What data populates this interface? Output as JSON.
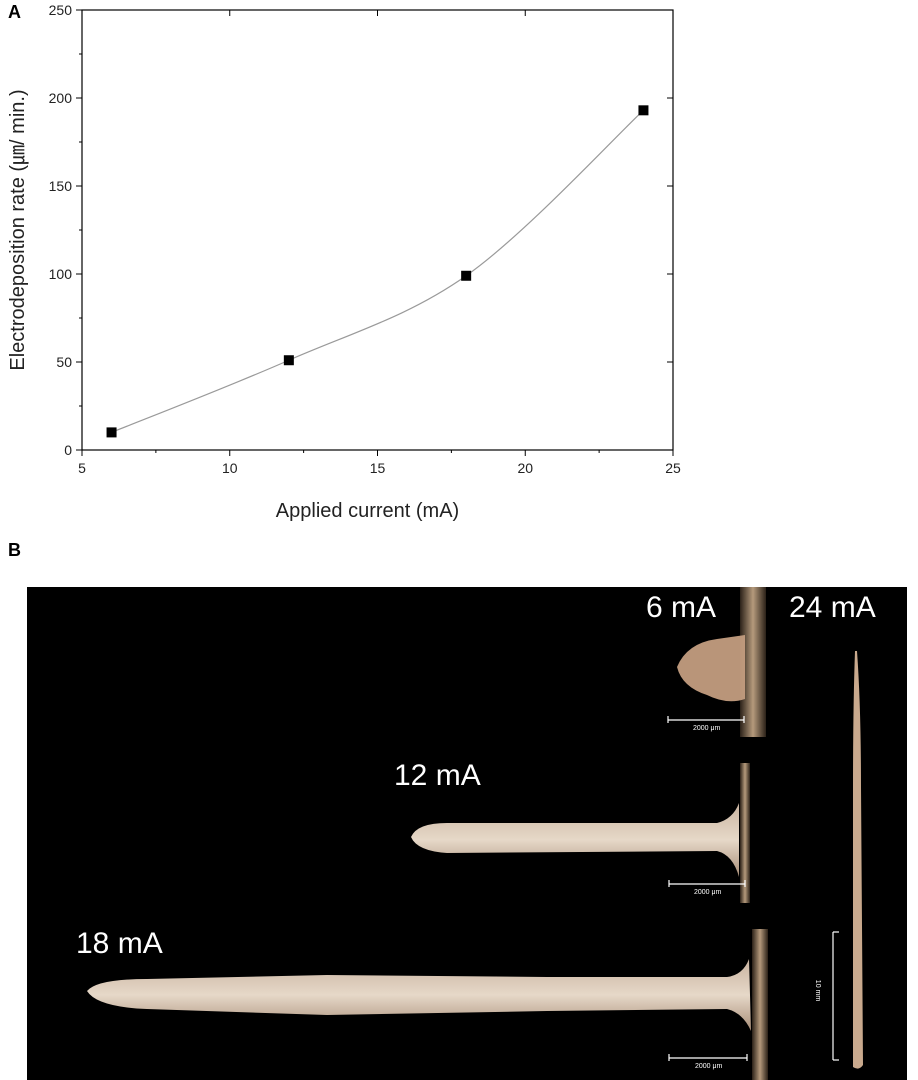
{
  "panel_a_label": "A",
  "panel_b_label": "B",
  "chart_data": {
    "type": "scatter",
    "xlabel": "Applied current (mA)",
    "ylabel": "Electrodeposition rate (㎛/ min.)",
    "xlim": [
      5,
      25
    ],
    "ylim": [
      0,
      250
    ],
    "xticks": [
      5,
      10,
      15,
      20,
      25
    ],
    "yticks": [
      0,
      50,
      100,
      150,
      200,
      250
    ],
    "series": [
      {
        "x": [
          6,
          12,
          18,
          24
        ],
        "y": [
          10,
          51,
          99,
          193
        ]
      }
    ],
    "fit_line": true,
    "grid": false,
    "marker": "square",
    "colors": {
      "marker": "#000000",
      "line": "#9a9a9a"
    }
  },
  "photo": {
    "labels": [
      "6 mA",
      "12 mA",
      "18 mA",
      "24 mA"
    ],
    "scale_bars": [
      "2000 μm",
      "2000 μm",
      "2000 μm"
    ],
    "scale_bar_vertical": "10 mm"
  }
}
